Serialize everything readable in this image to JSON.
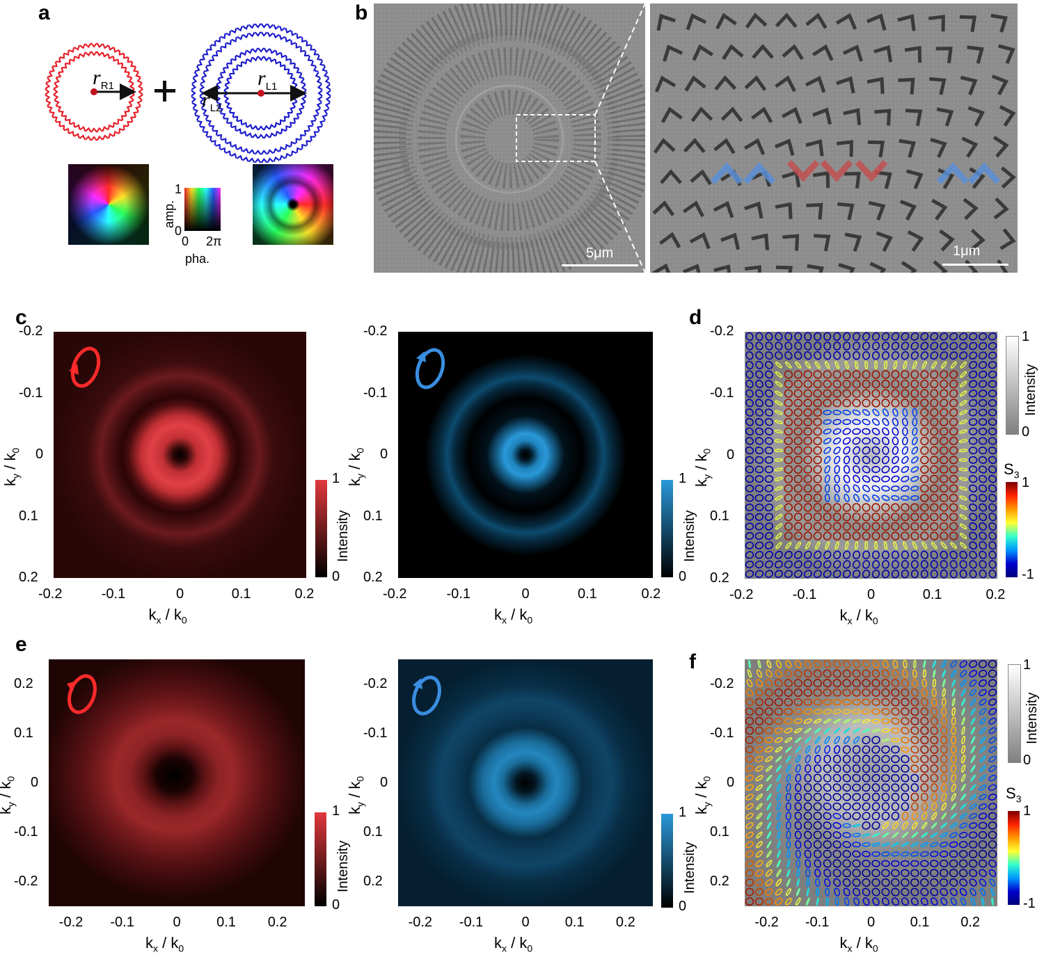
{
  "panels": {
    "a": {
      "label": "a",
      "radii": {
        "r_R1": "r",
        "r_R1_sub": "R1",
        "r_L1": "r",
        "r_L1_sub": "L1",
        "r_L2": "r",
        "r_L2_sub": "L2"
      },
      "plus": "+",
      "legend": {
        "amp_label": "amp.",
        "amp_max": "1",
        "amp_min": "0",
        "pha_min": "0",
        "pha_max": "2π",
        "pha_label": "pha."
      },
      "colors": {
        "right_handed": "#e8202a",
        "left_handed": "#1c1ccc"
      }
    },
    "b": {
      "label": "b",
      "scalebar_left": "5μm",
      "scalebar_right": "1μm"
    },
    "c": {
      "label": "c",
      "left": {
        "yticks": [
          "-0.2",
          "-0.1",
          "0",
          "0.1",
          "0.2"
        ],
        "xticks": [
          "-0.2",
          "-0.1",
          "0",
          "0.1",
          "0.2"
        ],
        "colorbar": {
          "max": "1",
          "min": "0",
          "label": "Intensity",
          "color": "#e0383c"
        }
      },
      "right": {
        "yticks": [
          "-0.2",
          "-0.1",
          "0",
          "0.1",
          "0.2"
        ],
        "xticks": [
          "-0.2",
          "-0.1",
          "0",
          "0.1",
          "0.2"
        ],
        "colorbar": {
          "max": "1",
          "min": "0",
          "label": "Intensity",
          "color": "#2a98d8"
        }
      }
    },
    "d": {
      "label": "d",
      "yticks": [
        "-0.2",
        "-0.1",
        "0",
        "0.1",
        "0.2"
      ],
      "xticks": [
        "-0.2",
        "-0.1",
        "0",
        "0.1",
        "0.2"
      ],
      "intensity_bar": {
        "max": "1",
        "min": "0",
        "label": "Intensity"
      },
      "s3_bar": {
        "label": "S",
        "label_sub": "3",
        "max": "1",
        "min": "-1"
      }
    },
    "e": {
      "label": "e",
      "left": {
        "yticks": [
          "0.2",
          "0.1",
          "0",
          "-0.1",
          "-0.2"
        ],
        "xticks": [
          "-0.2",
          "-0.1",
          "0",
          "0.1",
          "0.2"
        ],
        "colorbar": {
          "max": "1",
          "min": "0",
          "label": "Intensity",
          "color": "#e0383c"
        }
      },
      "right": {
        "yticks": [
          "-0.2",
          "-0.1",
          "0",
          "0.1",
          "0.2"
        ],
        "xticks": [
          "-0.2",
          "-0.1",
          "0",
          "0.1",
          "0.2"
        ],
        "colorbar": {
          "max": "1",
          "min": "0",
          "label": "Intensity",
          "color": "#2a98d8"
        }
      }
    },
    "f": {
      "label": "f",
      "yticks": [
        "-0.2",
        "-0.1",
        "0",
        "0.1",
        "0.2"
      ],
      "xticks": [
        "-0.2",
        "-0.1",
        "0",
        "0.1",
        "0.2"
      ],
      "intensity_bar": {
        "max": "1",
        "min": "0",
        "label": "Intensity"
      },
      "s3_bar": {
        "label": "S",
        "label_sub": "3",
        "max": "1",
        "min": "-1"
      }
    }
  },
  "axes": {
    "x_main": "k",
    "x_sub": "x",
    "x_mid": " / k",
    "x_sub2": "0",
    "y_main": "k",
    "y_sub": "y",
    "y_mid": " / k",
    "y_sub2": "0"
  }
}
